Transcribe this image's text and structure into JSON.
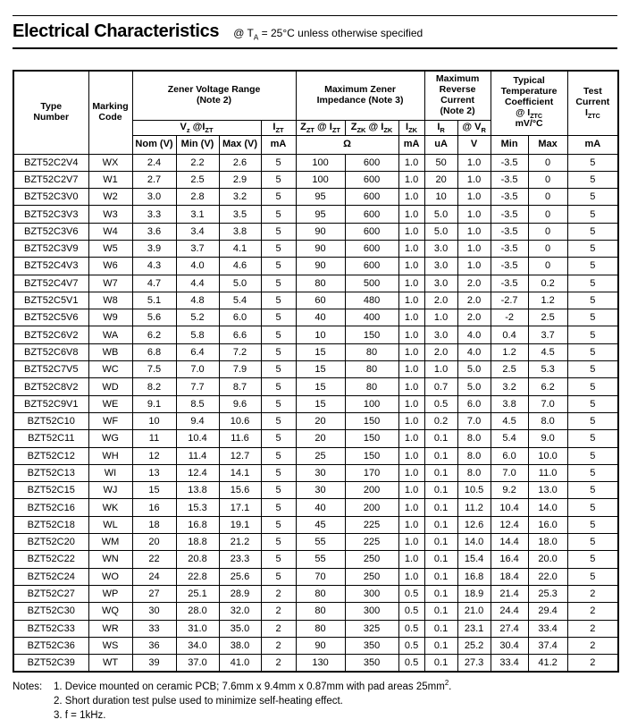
{
  "page": {
    "title": "Electrical Characteristics",
    "subtitle": "@ T_{A} = 25°C unless otherwise specified"
  },
  "table": {
    "header": {
      "type_number": "Type\nNumber",
      "marking_code": "Marking\nCode",
      "zener_voltage_range": "Zener Voltage Range\n(Note 2)",
      "max_zener_impedance": "Maximum Zener\nImpedance (Note 3)",
      "max_reverse_current": "Maximum\nReverse\nCurrent\n(Note 2)",
      "temp_coefficient": "Typical\nTemperature\nCoefficient\n@ I_{ZTC}\nmV/°C",
      "test_current": "Test\nCurrent\nI_{ZTC}",
      "vz_izt": "V_{z} @I_{ZT}",
      "izt": "I_{ZT}",
      "zzt_izt": "Z_{ZT} @ I_{ZT}",
      "zzk_izk": "Z_{ZK} @ I_{ZK}",
      "izk": "I_{ZK}",
      "ir": "I_{R}",
      "vr": "@ V_{R}",
      "units": {
        "nom": "Nom (V)",
        "min": "Min (V)",
        "max": "Max (V)",
        "izt_ma": "mA",
        "ohm": "Ω",
        "izk_ma": "mA",
        "ua": "uA",
        "v": "V",
        "tc_min": "Min",
        "tc_max": "Max",
        "ma": "mA"
      }
    },
    "column_keys": [
      "type-number",
      "marking-code",
      "nom-v",
      "min-v",
      "max-v",
      "izt-ma",
      "zzt",
      "zzk",
      "izk-ma",
      "ir-ua",
      "vr-v",
      "tc-min",
      "tc-max",
      "iztc-ma"
    ],
    "rows": [
      [
        "BZT52C2V4",
        "WX",
        "2.4",
        "2.2",
        "2.6",
        "5",
        "100",
        "600",
        "1.0",
        "50",
        "1.0",
        "-3.5",
        "0",
        "5"
      ],
      [
        "BZT52C2V7",
        "W1",
        "2.7",
        "2.5",
        "2.9",
        "5",
        "100",
        "600",
        "1.0",
        "20",
        "1.0",
        "-3.5",
        "0",
        "5"
      ],
      [
        "BZT52C3V0",
        "W2",
        "3.0",
        "2.8",
        "3.2",
        "5",
        "95",
        "600",
        "1.0",
        "10",
        "1.0",
        "-3.5",
        "0",
        "5"
      ],
      [
        "BZT52C3V3",
        "W3",
        "3.3",
        "3.1",
        "3.5",
        "5",
        "95",
        "600",
        "1.0",
        "5.0",
        "1.0",
        "-3.5",
        "0",
        "5"
      ],
      [
        "BZT52C3V6",
        "W4",
        "3.6",
        "3.4",
        "3.8",
        "5",
        "90",
        "600",
        "1.0",
        "5.0",
        "1.0",
        "-3.5",
        "0",
        "5"
      ],
      [
        "BZT52C3V9",
        "W5",
        "3.9",
        "3.7",
        "4.1",
        "5",
        "90",
        "600",
        "1.0",
        "3.0",
        "1.0",
        "-3.5",
        "0",
        "5"
      ],
      [
        "BZT52C4V3",
        "W6",
        "4.3",
        "4.0",
        "4.6",
        "5",
        "90",
        "600",
        "1.0",
        "3.0",
        "1.0",
        "-3.5",
        "0",
        "5"
      ],
      [
        "BZT52C4V7",
        "W7",
        "4.7",
        "4.4",
        "5.0",
        "5",
        "80",
        "500",
        "1.0",
        "3.0",
        "2.0",
        "-3.5",
        "0.2",
        "5"
      ],
      [
        "BZT52C5V1",
        "W8",
        "5.1",
        "4.8",
        "5.4",
        "5",
        "60",
        "480",
        "1.0",
        "2.0",
        "2.0",
        "-2.7",
        "1.2",
        "5"
      ],
      [
        "BZT52C5V6",
        "W9",
        "5.6",
        "5.2",
        "6.0",
        "5",
        "40",
        "400",
        "1.0",
        "1.0",
        "2.0",
        "-2",
        "2.5",
        "5"
      ],
      [
        "BZT52C6V2",
        "WA",
        "6.2",
        "5.8",
        "6.6",
        "5",
        "10",
        "150",
        "1.0",
        "3.0",
        "4.0",
        "0.4",
        "3.7",
        "5"
      ],
      [
        "BZT52C6V8",
        "WB",
        "6.8",
        "6.4",
        "7.2",
        "5",
        "15",
        "80",
        "1.0",
        "2.0",
        "4.0",
        "1.2",
        "4.5",
        "5"
      ],
      [
        "BZT52C7V5",
        "WC",
        "7.5",
        "7.0",
        "7.9",
        "5",
        "15",
        "80",
        "1.0",
        "1.0",
        "5.0",
        "2.5",
        "5.3",
        "5"
      ],
      [
        "BZT52C8V2",
        "WD",
        "8.2",
        "7.7",
        "8.7",
        "5",
        "15",
        "80",
        "1.0",
        "0.7",
        "5.0",
        "3.2",
        "6.2",
        "5"
      ],
      [
        "BZT52C9V1",
        "WE",
        "9.1",
        "8.5",
        "9.6",
        "5",
        "15",
        "100",
        "1.0",
        "0.5",
        "6.0",
        "3.8",
        "7.0",
        "5"
      ],
      [
        "BZT52C10",
        "WF",
        "10",
        "9.4",
        "10.6",
        "5",
        "20",
        "150",
        "1.0",
        "0.2",
        "7.0",
        "4.5",
        "8.0",
        "5"
      ],
      [
        "BZT52C11",
        "WG",
        "11",
        "10.4",
        "11.6",
        "5",
        "20",
        "150",
        "1.0",
        "0.1",
        "8.0",
        "5.4",
        "9.0",
        "5"
      ],
      [
        "BZT52C12",
        "WH",
        "12",
        "11.4",
        "12.7",
        "5",
        "25",
        "150",
        "1.0",
        "0.1",
        "8.0",
        "6.0",
        "10.0",
        "5"
      ],
      [
        "BZT52C13",
        "WI",
        "13",
        "12.4",
        "14.1",
        "5",
        "30",
        "170",
        "1.0",
        "0.1",
        "8.0",
        "7.0",
        "11.0",
        "5"
      ],
      [
        "BZT52C15",
        "WJ",
        "15",
        "13.8",
        "15.6",
        "5",
        "30",
        "200",
        "1.0",
        "0.1",
        "10.5",
        "9.2",
        "13.0",
        "5"
      ],
      [
        "BZT52C16",
        "WK",
        "16",
        "15.3",
        "17.1",
        "5",
        "40",
        "200",
        "1.0",
        "0.1",
        "11.2",
        "10.4",
        "14.0",
        "5"
      ],
      [
        "BZT52C18",
        "WL",
        "18",
        "16.8",
        "19.1",
        "5",
        "45",
        "225",
        "1.0",
        "0.1",
        "12.6",
        "12.4",
        "16.0",
        "5"
      ],
      [
        "BZT52C20",
        "WM",
        "20",
        "18.8",
        "21.2",
        "5",
        "55",
        "225",
        "1.0",
        "0.1",
        "14.0",
        "14.4",
        "18.0",
        "5"
      ],
      [
        "BZT52C22",
        "WN",
        "22",
        "20.8",
        "23.3",
        "5",
        "55",
        "250",
        "1.0",
        "0.1",
        "15.4",
        "16.4",
        "20.0",
        "5"
      ],
      [
        "BZT52C24",
        "WO",
        "24",
        "22.8",
        "25.6",
        "5",
        "70",
        "250",
        "1.0",
        "0.1",
        "16.8",
        "18.4",
        "22.0",
        "5"
      ],
      [
        "BZT52C27",
        "WP",
        "27",
        "25.1",
        "28.9",
        "2",
        "80",
        "300",
        "0.5",
        "0.1",
        "18.9",
        "21.4",
        "25.3",
        "2"
      ],
      [
        "BZT52C30",
        "WQ",
        "30",
        "28.0",
        "32.0",
        "2",
        "80",
        "300",
        "0.5",
        "0.1",
        "21.0",
        "24.4",
        "29.4",
        "2"
      ],
      [
        "BZT52C33",
        "WR",
        "33",
        "31.0",
        "35.0",
        "2",
        "80",
        "325",
        "0.5",
        "0.1",
        "23.1",
        "27.4",
        "33.4",
        "2"
      ],
      [
        "BZT52C36",
        "WS",
        "36",
        "34.0",
        "38.0",
        "2",
        "90",
        "350",
        "0.5",
        "0.1",
        "25.2",
        "30.4",
        "37.4",
        "2"
      ],
      [
        "BZT52C39",
        "WT",
        "39",
        "37.0",
        "41.0",
        "2",
        "130",
        "350",
        "0.5",
        "0.1",
        "27.3",
        "33.4",
        "41.2",
        "2"
      ]
    ]
  },
  "notes": {
    "label": "Notes:",
    "items": [
      "1. Device mounted on ceramic PCB; 7.6mm x 9.4mm x 0.87mm with pad areas 25mm^{2}.",
      "2. Short duration test pulse used to minimize self-heating effect.",
      "3. f = 1kHz."
    ]
  }
}
